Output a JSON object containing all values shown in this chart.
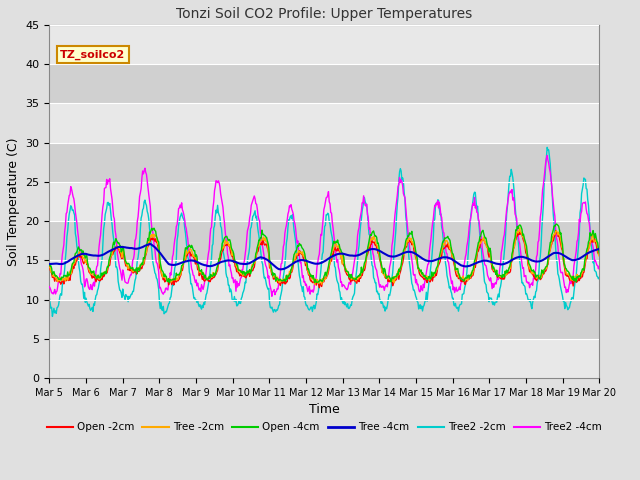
{
  "title": "Tonzi Soil CO2 Profile: Upper Temperatures",
  "xlabel": "Time",
  "ylabel": "Soil Temperature (C)",
  "ylim": [
    0,
    45
  ],
  "yticks": [
    0,
    5,
    10,
    15,
    20,
    25,
    30,
    35,
    40,
    45
  ],
  "date_labels": [
    "Mar 5",
    "Mar 6",
    "Mar 7",
    "Mar 8",
    "Mar 9",
    "Mar 10",
    "Mar 11",
    "Mar 12",
    "Mar 13",
    "Mar 14",
    "Mar 15",
    "Mar 16",
    "Mar 17",
    "Mar 18",
    "Mar 19",
    "Mar 20"
  ],
  "watermark": "TZ_soilco2",
  "fig_bg": "#e0e0e0",
  "plot_bg": "#d3d3d3",
  "colors": {
    "open2": "#ff0000",
    "tree2": "#ffaa00",
    "open4": "#00cc00",
    "tree4": "#0000cc",
    "tree2_2": "#00cccc",
    "tree2_4": "#ff00ff"
  },
  "n_days": 15,
  "pts_per_day": 48
}
